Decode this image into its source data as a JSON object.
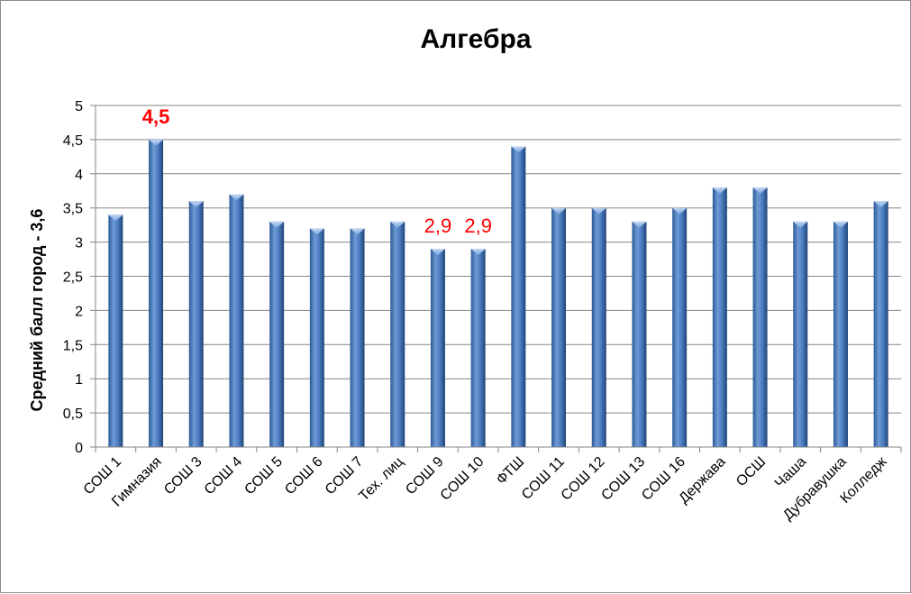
{
  "chart_data": {
    "type": "bar",
    "title": "Алгебра",
    "ylabel": "Средний балл город  -  3,6",
    "xlabel": "",
    "ylim": [
      0,
      5
    ],
    "yticks": [
      "0",
      "0,5",
      "1",
      "1,5",
      "2",
      "2,5",
      "3",
      "3,5",
      "4",
      "4,5",
      "5"
    ],
    "grid": true,
    "legend": "none",
    "categories": [
      "СОШ 1",
      "Гимназия",
      "СОШ 3",
      "СОШ 4",
      "СОШ 5",
      "СОШ 6",
      "СОШ 7",
      "Тех. лиц",
      "СОШ 9",
      "СОШ 10",
      "ФТШ",
      "СОШ 11",
      "СОШ 12",
      "СОШ 13",
      "СОШ 16",
      "Держава",
      "ОСШ",
      "Чаша",
      "Дубравушка",
      "Колледж"
    ],
    "values": [
      3.4,
      4.5,
      3.6,
      3.7,
      3.3,
      3.2,
      3.2,
      3.3,
      2.9,
      2.9,
      4.4,
      3.5,
      3.5,
      3.3,
      3.5,
      3.8,
      3.8,
      3.3,
      3.3,
      3.6
    ],
    "annotations": [
      {
        "category_index": 1,
        "text": "4,5",
        "bold": true
      },
      {
        "category_index": 8,
        "text": "2,9",
        "bold": false
      },
      {
        "category_index": 9,
        "text": "2,9",
        "bold": false
      }
    ],
    "colors": {
      "bar_light": "#8fb4e3",
      "bar_mid": "#4f81bd",
      "bar_dark": "#254a7d",
      "annotation": "#ff0000",
      "grid": "#868686"
    }
  }
}
